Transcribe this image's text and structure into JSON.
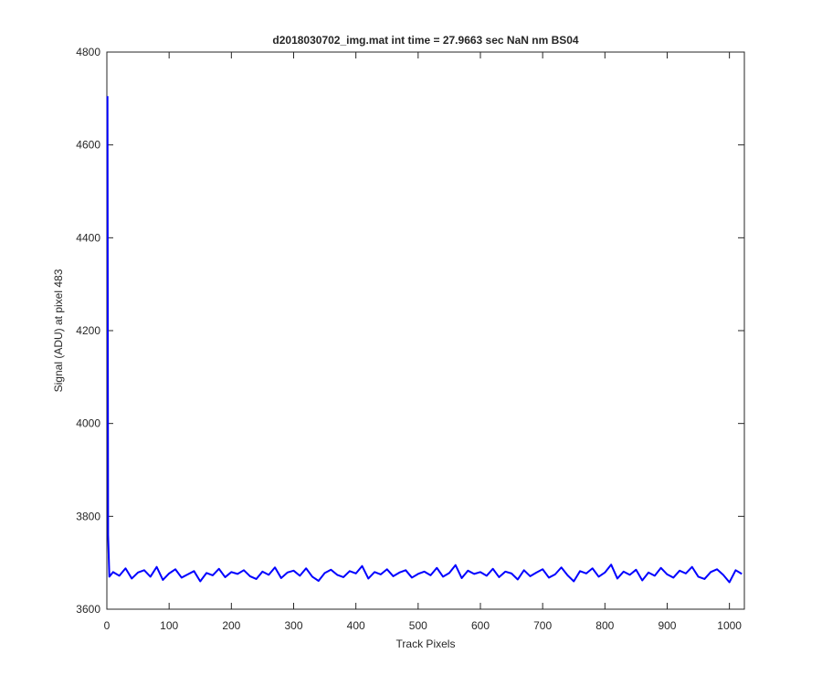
{
  "chart_data": {
    "type": "line",
    "title": "d2018030702_img.mat int time = 27.9663 sec  NaN nm BS04",
    "x_label": "Track Pixels",
    "y_label": "Signal (ADU) at pixel 483",
    "x": [
      1,
      2,
      4,
      10,
      20,
      30,
      40,
      50,
      60,
      70,
      80,
      90,
      100,
      110,
      120,
      130,
      140,
      150,
      160,
      170,
      180,
      190,
      200,
      210,
      220,
      230,
      240,
      250,
      260,
      270,
      280,
      290,
      300,
      310,
      320,
      330,
      340,
      350,
      360,
      370,
      380,
      390,
      400,
      410,
      420,
      430,
      440,
      450,
      460,
      470,
      480,
      490,
      500,
      510,
      520,
      530,
      540,
      550,
      560,
      570,
      580,
      590,
      600,
      610,
      620,
      630,
      640,
      650,
      660,
      670,
      680,
      690,
      700,
      710,
      720,
      730,
      740,
      750,
      760,
      770,
      780,
      790,
      800,
      810,
      820,
      830,
      840,
      850,
      860,
      870,
      880,
      890,
      900,
      910,
      920,
      930,
      940,
      950,
      960,
      970,
      980,
      990,
      1000,
      1010,
      1020
    ],
    "values": [
      4705,
      3760,
      3670,
      3680,
      3672,
      3688,
      3666,
      3679,
      3684,
      3670,
      3691,
      3663,
      3677,
      3686,
      3668,
      3675,
      3682,
      3660,
      3678,
      3673,
      3687,
      3669,
      3680,
      3676,
      3684,
      3671,
      3665,
      3681,
      3674,
      3690,
      3667,
      3679,
      3683,
      3672,
      3688,
      3670,
      3661,
      3678,
      3685,
      3674,
      3669,
      3682,
      3677,
      3693,
      3666,
      3680,
      3675,
      3686,
      3671,
      3679,
      3684,
      3668,
      3676,
      3681,
      3673,
      3689,
      3670,
      3678,
      3695,
      3667,
      3683,
      3676,
      3680,
      3672,
      3687,
      3669,
      3681,
      3677,
      3664,
      3684,
      3671,
      3679,
      3686,
      3668,
      3675,
      3690,
      3673,
      3660,
      3682,
      3677,
      3688,
      3670,
      3679,
      3696,
      3666,
      3681,
      3674,
      3685,
      3662,
      3679,
      3672,
      3689,
      3675,
      3668,
      3683,
      3677,
      3691,
      3670,
      3665,
      3680,
      3686,
      3674,
      3658,
      3684,
      3676
    ],
    "color": "#0000ff",
    "xlim": [
      0,
      1024
    ],
    "xticks": [
      0,
      100,
      200,
      300,
      400,
      500,
      600,
      700,
      800,
      900,
      1000
    ],
    "ylim": [
      3600,
      4800
    ],
    "yticks": [
      3600,
      3800,
      4000,
      4200,
      4400,
      4600,
      4800
    ],
    "grid": false
  }
}
